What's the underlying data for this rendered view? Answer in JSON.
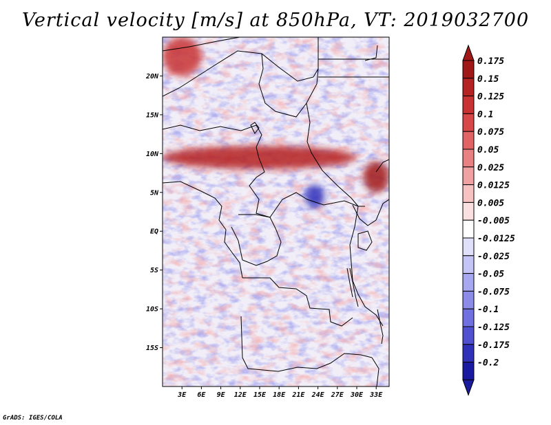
{
  "title": "Vertical velocity [m/s] at 850hPa, VT: 2019032700",
  "credit": "GrADS: IGES/COLA",
  "map": {
    "lon_range": [
      0,
      35
    ],
    "lat_range": [
      -20,
      25
    ],
    "lon_ticks": [
      {
        "value": 3,
        "label": "3E"
      },
      {
        "value": 6,
        "label": "6E"
      },
      {
        "value": 9,
        "label": "9E"
      },
      {
        "value": 12,
        "label": "12E"
      },
      {
        "value": 15,
        "label": "15E"
      },
      {
        "value": 18,
        "label": "18E"
      },
      {
        "value": 21,
        "label": "21E"
      },
      {
        "value": 24,
        "label": "24E"
      },
      {
        "value": 27,
        "label": "27E"
      },
      {
        "value": 30,
        "label": "30E"
      },
      {
        "value": 33,
        "label": "33E"
      }
    ],
    "lat_ticks": [
      {
        "value": 20,
        "label": "20N"
      },
      {
        "value": 15,
        "label": "15N"
      },
      {
        "value": 10,
        "label": "10N"
      },
      {
        "value": 5,
        "label": "5N"
      },
      {
        "value": 0,
        "label": "EQ"
      },
      {
        "value": -5,
        "label": "5S"
      },
      {
        "value": -10,
        "label": "10S"
      },
      {
        "value": -15,
        "label": "15S"
      }
    ],
    "features": [
      {
        "name": "strong-ascent-band-sahel",
        "lon": [
          0,
          30
        ],
        "lat": [
          8,
          11
        ],
        "value": 0.15
      },
      {
        "name": "strong-ascent-northwest-corner",
        "lon": [
          0,
          6
        ],
        "lat": [
          20,
          25
        ],
        "value": 0.125
      },
      {
        "name": "strong-ascent-east-edge",
        "lon": [
          31,
          35
        ],
        "lat": [
          5,
          9
        ],
        "value": 0.175
      },
      {
        "name": "strong-descent-center",
        "lon": [
          22,
          25
        ],
        "lat": [
          3,
          6
        ],
        "value": -0.175
      }
    ]
  },
  "colorbar": {
    "levels": [
      {
        "label": "0.175",
        "color": "#a01818"
      },
      {
        "label": "0.15",
        "color": "#b42222"
      },
      {
        "label": "0.125",
        "color": "#c83232"
      },
      {
        "label": "0.1",
        "color": "#d84848"
      },
      {
        "label": "0.075",
        "color": "#e06464"
      },
      {
        "label": "0.05",
        "color": "#e88282"
      },
      {
        "label": "0.025",
        "color": "#f0a2a2"
      },
      {
        "label": "0.0125",
        "color": "#f6c2c2"
      },
      {
        "label": "0.005",
        "color": "#fae0e0"
      },
      {
        "label": "-0.005",
        "color": "#ffffff"
      },
      {
        "label": "-0.0125",
        "color": "#e0e0fa"
      },
      {
        "label": "-0.025",
        "color": "#c4c4f6"
      },
      {
        "label": "-0.05",
        "color": "#a8a8f0"
      },
      {
        "label": "-0.075",
        "color": "#8c8ce8"
      },
      {
        "label": "-0.1",
        "color": "#7070e0"
      },
      {
        "label": "-0.125",
        "color": "#5050d0"
      },
      {
        "label": "-0.175",
        "color": "#3030b8"
      },
      {
        "label": "-0.2",
        "color": "#1a1aa0"
      }
    ],
    "top_arrow_color": "#a01818",
    "bottom_arrow_color": "#1a1a9c"
  }
}
